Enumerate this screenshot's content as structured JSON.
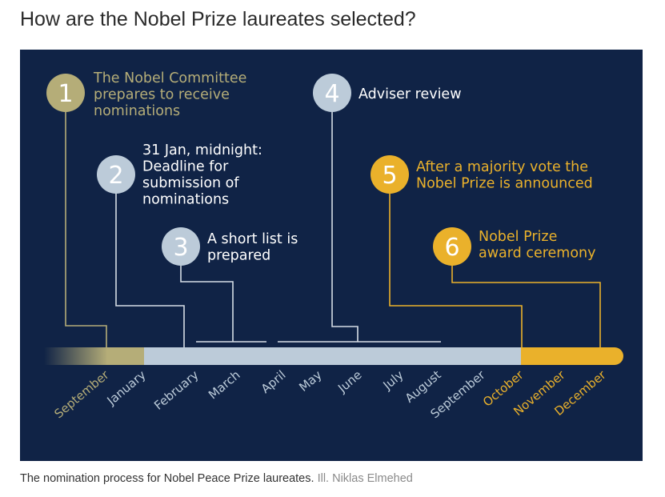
{
  "title": "How are the Nobel Prize laureates selected?",
  "colors": {
    "background": "#102346",
    "olive": "#b5ad78",
    "pale": "#bccbd9",
    "gold": "#eab12b",
    "line": "#d6dde5"
  },
  "steps": [
    {
      "number": "1",
      "lines": [
        "The Nobel Committee",
        "prepares to receive",
        "nominations"
      ]
    },
    {
      "number": "2",
      "lines": [
        "31 Jan, midnight:",
        "Deadline for",
        "submission of",
        "nominations"
      ]
    },
    {
      "number": "3",
      "lines": [
        "A short list is",
        "prepared"
      ]
    },
    {
      "number": "4",
      "lines": [
        "Adviser review"
      ]
    },
    {
      "number": "5",
      "lines": [
        "After a majority vote the",
        "Nobel Prize is announced"
      ]
    },
    {
      "number": "6",
      "lines": [
        "Nobel Prize",
        "award ceremony"
      ]
    }
  ],
  "months": [
    "September",
    "January",
    "February",
    "March",
    "April",
    "May",
    "June",
    "July",
    "August",
    "September",
    "October",
    "November",
    "December"
  ],
  "caption": {
    "text": "The nomination process for Nobel Peace Prize laureates.",
    "credit": "Ill. Niklas Elmehed"
  }
}
